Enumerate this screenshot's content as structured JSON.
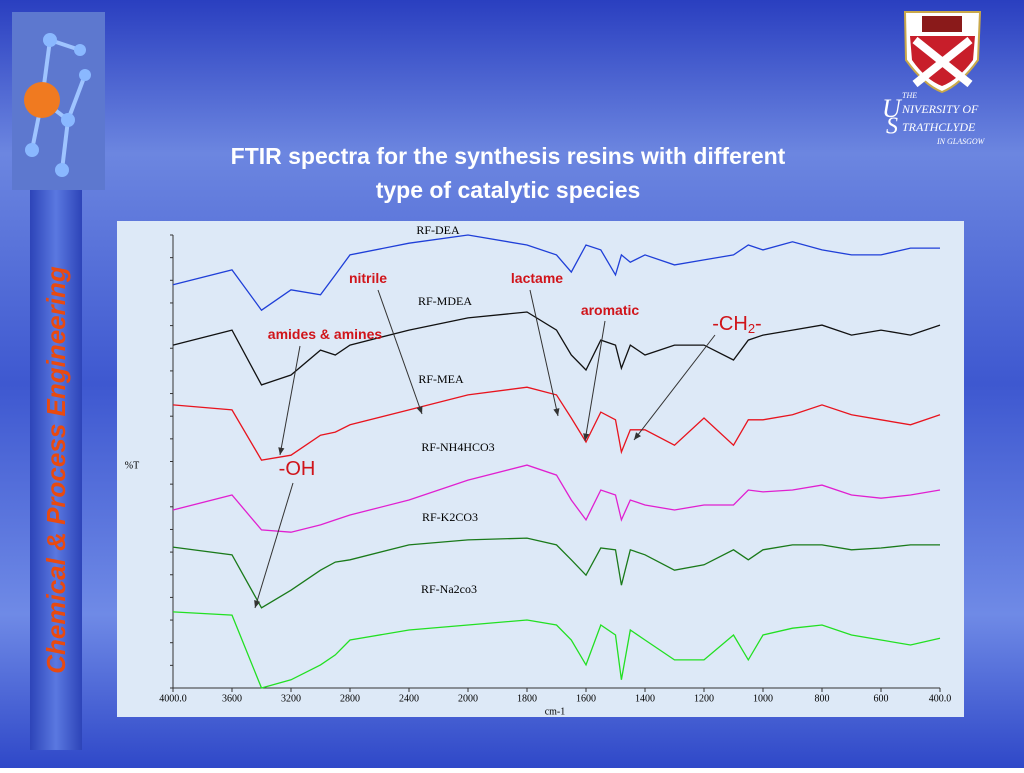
{
  "header": {
    "title_line1": "FTIR spectra for the synthesis resins with different",
    "title_line2": "type of catalytic species",
    "sidebar": "Chemical & Process Engineering",
    "logo": {
      "the": "THE",
      "u": "U",
      "niversity": "NIVERSITY OF",
      "s": "S",
      "trathclyde": "TRATHCLYDE",
      "glasgow": "IN GLASGOW"
    }
  },
  "chart_data": {
    "type": "line",
    "xlabel": "cm-1",
    "ylabel": "%T",
    "xlim": [
      4000,
      400
    ],
    "ylim": [
      0,
      100
    ],
    "xticks": [
      {
        "value": 4000,
        "label": "4000.0"
      },
      3600,
      3200,
      2800,
      2400,
      2000,
      1800,
      1600,
      1400,
      1200,
      1000,
      800,
      600,
      {
        "value": 400,
        "label": "400.0"
      }
    ],
    "x": [
      4000,
      3600,
      3400,
      3200,
      3000,
      2900,
      2800,
      2400,
      2000,
      1800,
      1700,
      1650,
      1600,
      1550,
      1500,
      1480,
      1450,
      1400,
      1300,
      1200,
      1100,
      1050,
      1000,
      900,
      800,
      700,
      600,
      500,
      400
    ],
    "series": [
      {
        "name": "RF-DEA",
        "color": "#1f3fd8",
        "values": [
          89.0,
          92.3,
          83.4,
          87.9,
          86.8,
          91.2,
          95.6,
          98.2,
          100.0,
          97.8,
          95.6,
          91.8,
          97.8,
          96.7,
          91.2,
          95.6,
          94.0,
          95.6,
          93.4,
          94.5,
          95.6,
          97.8,
          96.7,
          98.5,
          96.7,
          95.6,
          95.6,
          97.1,
          97.1
        ]
      },
      {
        "name": "RF-MDEA",
        "color": "#111111",
        "values": [
          75.7,
          79.0,
          66.9,
          69.1,
          74.6,
          73.5,
          75.7,
          79.0,
          81.7,
          83.0,
          79.0,
          73.5,
          70.2,
          76.8,
          75.7,
          70.6,
          75.7,
          73.5,
          75.7,
          75.7,
          72.4,
          76.8,
          77.9,
          79.0,
          80.1,
          77.9,
          79.0,
          77.9,
          80.1
        ]
      },
      {
        "name": "RF-MEA",
        "color": "#e8141e",
        "values": [
          62.5,
          61.4,
          50.3,
          51.4,
          55.8,
          56.5,
          58.1,
          61.4,
          64.7,
          66.4,
          64.7,
          59.6,
          54.3,
          60.9,
          59.2,
          52.1,
          57.0,
          57.0,
          53.6,
          59.6,
          53.6,
          59.2,
          59.2,
          60.3,
          62.5,
          60.3,
          59.2,
          58.1,
          60.3
        ]
      },
      {
        "name": "RF-NH4HCO3",
        "color": "#e020d0",
        "values": [
          39.3,
          42.6,
          34.9,
          34.4,
          36.0,
          37.1,
          38.2,
          41.5,
          45.9,
          49.2,
          47.0,
          41.5,
          37.1,
          43.7,
          42.6,
          37.1,
          41.5,
          40.4,
          39.3,
          40.4,
          40.4,
          43.7,
          43.3,
          43.7,
          44.8,
          42.6,
          41.9,
          42.6,
          43.7
        ]
      },
      {
        "name": "RF-K2CO3",
        "color": "#1a7a1a",
        "values": [
          31.1,
          29.4,
          17.7,
          21.6,
          26.0,
          27.8,
          28.3,
          31.6,
          32.7,
          33.1,
          31.6,
          28.3,
          24.9,
          30.9,
          30.5,
          22.7,
          30.5,
          29.4,
          26.0,
          27.2,
          30.5,
          28.3,
          30.5,
          31.6,
          31.6,
          30.5,
          30.9,
          31.6,
          31.6
        ]
      },
      {
        "name": "RF-Na2co3",
        "color": "#22e022",
        "values": [
          16.8,
          16.1,
          0.0,
          1.8,
          5.1,
          7.3,
          10.6,
          12.8,
          13.9,
          15.0,
          13.9,
          10.6,
          5.1,
          13.9,
          11.7,
          1.8,
          12.8,
          10.6,
          6.2,
          6.2,
          11.7,
          6.2,
          11.7,
          13.2,
          13.9,
          11.7,
          10.6,
          9.5,
          11.0
        ]
      }
    ],
    "annotations": [
      {
        "label": "nitrile"
      },
      {
        "label": "lactame"
      },
      {
        "label": "aromatic"
      },
      {
        "label": "-CH",
        "subscript": "2",
        "suffix": "-"
      },
      {
        "label": "amides & amines"
      },
      {
        "label": "-OH"
      }
    ]
  }
}
